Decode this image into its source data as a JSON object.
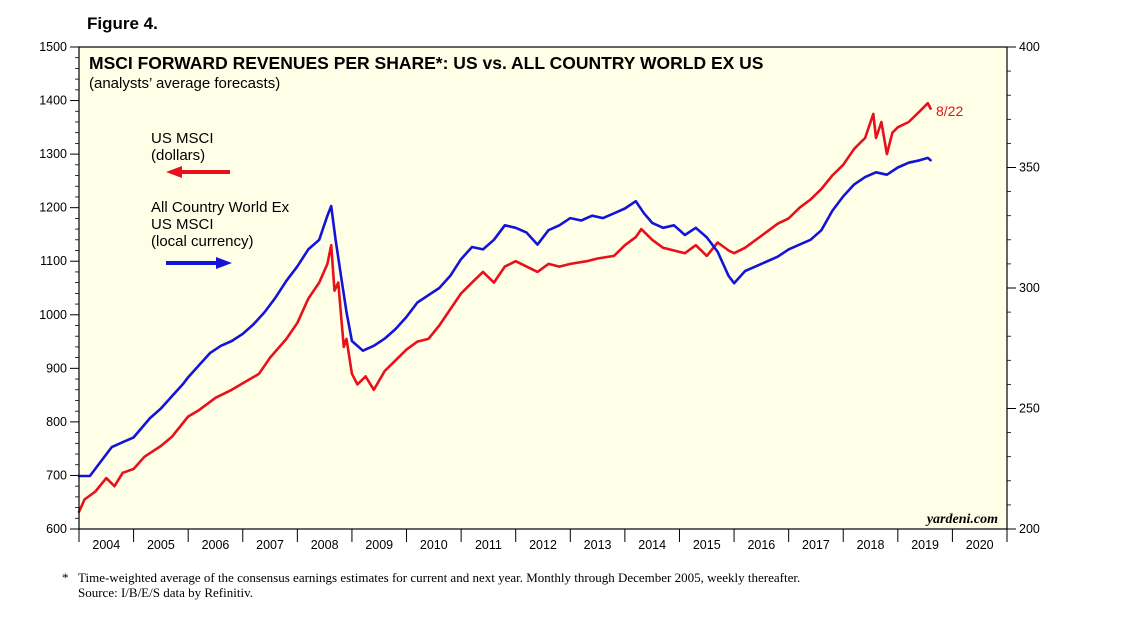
{
  "figure_label": "Figure 4.",
  "footnote": {
    "marker": "*",
    "line1": "Time-weighted average of the consensus earnings estimates for current and next year. Monthly through December 2005, weekly thereafter.",
    "line2": "Source: I/B/E/S data by Refinitiv."
  },
  "colors": {
    "background": "#FFFFE8",
    "us": "#E8101A",
    "acwx": "#1414D8",
    "axis": "#000000"
  },
  "chart_data": {
    "type": "line",
    "title": "MSCI FORWARD REVENUES PER SHARE*: US vs. ALL COUNTRY WORLD EX US",
    "subtitle": "(analysts’ average forecasts)",
    "watermark": "yardeni.com",
    "end_label": "8/22",
    "x_range": [
      2004,
      2021
    ],
    "x_ticks": [
      "2004",
      "2005",
      "2006",
      "2007",
      "2008",
      "2009",
      "2010",
      "2011",
      "2012",
      "2013",
      "2014",
      "2015",
      "2016",
      "2017",
      "2018",
      "2019",
      "2020"
    ],
    "y_left": {
      "range": [
        600,
        1500
      ],
      "ticks": [
        600,
        700,
        800,
        900,
        1000,
        1100,
        1200,
        1300,
        1400,
        1500
      ]
    },
    "y_right": {
      "range": [
        200,
        400
      ],
      "ticks": [
        200,
        250,
        300,
        350,
        400
      ]
    },
    "legend": [
      {
        "lines": [
          "US MSCI",
          "(dollars)"
        ],
        "arrow": "left",
        "series": "us"
      },
      {
        "lines": [
          "All Country World Ex",
          "US MSCI",
          "(local currency)"
        ],
        "arrow": "right",
        "series": "acwx"
      }
    ],
    "series": [
      {
        "name": "US MSCI (dollars)",
        "axis": "left",
        "color": "#E8101A",
        "points": [
          [
            2004.0,
            632
          ],
          [
            2004.1,
            655
          ],
          [
            2004.3,
            670
          ],
          [
            2004.5,
            695
          ],
          [
            2004.65,
            680
          ],
          [
            2004.8,
            705
          ],
          [
            2005.0,
            712
          ],
          [
            2005.2,
            735
          ],
          [
            2005.5,
            755
          ],
          [
            2005.7,
            772
          ],
          [
            2006.0,
            810
          ],
          [
            2006.2,
            822
          ],
          [
            2006.5,
            845
          ],
          [
            2006.8,
            860
          ],
          [
            2007.0,
            872
          ],
          [
            2007.3,
            890
          ],
          [
            2007.5,
            920
          ],
          [
            2007.8,
            955
          ],
          [
            2008.0,
            985
          ],
          [
            2008.2,
            1030
          ],
          [
            2008.4,
            1060
          ],
          [
            2008.55,
            1095
          ],
          [
            2008.62,
            1130
          ],
          [
            2008.68,
            1045
          ],
          [
            2008.75,
            1060
          ],
          [
            2008.8,
            1000
          ],
          [
            2008.85,
            940
          ],
          [
            2008.9,
            955
          ],
          [
            2009.0,
            890
          ],
          [
            2009.1,
            870
          ],
          [
            2009.25,
            885
          ],
          [
            2009.4,
            860
          ],
          [
            2009.6,
            895
          ],
          [
            2009.8,
            915
          ],
          [
            2010.0,
            935
          ],
          [
            2010.2,
            950
          ],
          [
            2010.4,
            955
          ],
          [
            2010.6,
            980
          ],
          [
            2010.8,
            1010
          ],
          [
            2011.0,
            1040
          ],
          [
            2011.2,
            1060
          ],
          [
            2011.4,
            1080
          ],
          [
            2011.6,
            1060
          ],
          [
            2011.8,
            1090
          ],
          [
            2012.0,
            1100
          ],
          [
            2012.2,
            1090
          ],
          [
            2012.4,
            1080
          ],
          [
            2012.6,
            1095
          ],
          [
            2012.8,
            1090
          ],
          [
            2013.0,
            1095
          ],
          [
            2013.3,
            1100
          ],
          [
            2013.5,
            1105
          ],
          [
            2013.8,
            1110
          ],
          [
            2014.0,
            1130
          ],
          [
            2014.2,
            1145
          ],
          [
            2014.3,
            1160
          ],
          [
            2014.5,
            1140
          ],
          [
            2014.7,
            1125
          ],
          [
            2014.9,
            1120
          ],
          [
            2015.1,
            1115
          ],
          [
            2015.3,
            1130
          ],
          [
            2015.5,
            1110
          ],
          [
            2015.7,
            1135
          ],
          [
            2015.9,
            1120
          ],
          [
            2016.0,
            1115
          ],
          [
            2016.2,
            1125
          ],
          [
            2016.4,
            1140
          ],
          [
            2016.6,
            1155
          ],
          [
            2016.8,
            1170
          ],
          [
            2017.0,
            1180
          ],
          [
            2017.2,
            1200
          ],
          [
            2017.4,
            1215
          ],
          [
            2017.6,
            1235
          ],
          [
            2017.8,
            1260
          ],
          [
            2018.0,
            1280
          ],
          [
            2018.2,
            1310
          ],
          [
            2018.4,
            1330
          ],
          [
            2018.55,
            1375
          ],
          [
            2018.6,
            1330
          ],
          [
            2018.7,
            1360
          ],
          [
            2018.8,
            1300
          ],
          [
            2018.9,
            1340
          ],
          [
            2019.0,
            1350
          ],
          [
            2019.2,
            1360
          ],
          [
            2019.4,
            1380
          ],
          [
            2019.55,
            1395
          ],
          [
            2019.6,
            1385
          ]
        ]
      },
      {
        "name": "All Country World Ex US MSCI (local currency)",
        "axis": "right",
        "color": "#1414D8",
        "points": [
          [
            2004.0,
            222
          ],
          [
            2004.2,
            222
          ],
          [
            2004.4,
            228
          ],
          [
            2004.6,
            234
          ],
          [
            2004.8,
            236
          ],
          [
            2005.0,
            238
          ],
          [
            2005.3,
            246
          ],
          [
            2005.5,
            250
          ],
          [
            2005.7,
            255
          ],
          [
            2005.9,
            260
          ],
          [
            2006.0,
            263
          ],
          [
            2006.2,
            268
          ],
          [
            2006.4,
            273
          ],
          [
            2006.6,
            276
          ],
          [
            2006.8,
            278
          ],
          [
            2007.0,
            281
          ],
          [
            2007.2,
            285
          ],
          [
            2007.4,
            290
          ],
          [
            2007.6,
            296
          ],
          [
            2007.8,
            303
          ],
          [
            2008.0,
            309
          ],
          [
            2008.2,
            316
          ],
          [
            2008.4,
            320
          ],
          [
            2008.55,
            330
          ],
          [
            2008.62,
            334
          ],
          [
            2008.7,
            320
          ],
          [
            2008.8,
            305
          ],
          [
            2008.9,
            290
          ],
          [
            2009.0,
            278
          ],
          [
            2009.2,
            274
          ],
          [
            2009.4,
            276
          ],
          [
            2009.6,
            279
          ],
          [
            2009.8,
            283
          ],
          [
            2010.0,
            288
          ],
          [
            2010.2,
            294
          ],
          [
            2010.4,
            297
          ],
          [
            2010.6,
            300
          ],
          [
            2010.8,
            305
          ],
          [
            2011.0,
            312
          ],
          [
            2011.2,
            317
          ],
          [
            2011.4,
            316
          ],
          [
            2011.6,
            320
          ],
          [
            2011.8,
            326
          ],
          [
            2012.0,
            325
          ],
          [
            2012.2,
            323
          ],
          [
            2012.4,
            318
          ],
          [
            2012.6,
            324
          ],
          [
            2012.8,
            326
          ],
          [
            2013.0,
            329
          ],
          [
            2013.2,
            328
          ],
          [
            2013.4,
            330
          ],
          [
            2013.6,
            329
          ],
          [
            2013.8,
            331
          ],
          [
            2014.0,
            333
          ],
          [
            2014.2,
            336
          ],
          [
            2014.35,
            331
          ],
          [
            2014.5,
            327
          ],
          [
            2014.7,
            325
          ],
          [
            2014.9,
            326
          ],
          [
            2015.1,
            322
          ],
          [
            2015.3,
            325
          ],
          [
            2015.5,
            321
          ],
          [
            2015.7,
            315
          ],
          [
            2015.9,
            305
          ],
          [
            2016.0,
            302
          ],
          [
            2016.2,
            307
          ],
          [
            2016.4,
            309
          ],
          [
            2016.6,
            311
          ],
          [
            2016.8,
            313
          ],
          [
            2017.0,
            316
          ],
          [
            2017.2,
            318
          ],
          [
            2017.4,
            320
          ],
          [
            2017.6,
            324
          ],
          [
            2017.8,
            332
          ],
          [
            2018.0,
            338
          ],
          [
            2018.2,
            343
          ],
          [
            2018.4,
            346
          ],
          [
            2018.6,
            348
          ],
          [
            2018.8,
            347
          ],
          [
            2019.0,
            350
          ],
          [
            2019.2,
            352
          ],
          [
            2019.4,
            353
          ],
          [
            2019.55,
            354
          ],
          [
            2019.6,
            353
          ]
        ]
      }
    ]
  }
}
